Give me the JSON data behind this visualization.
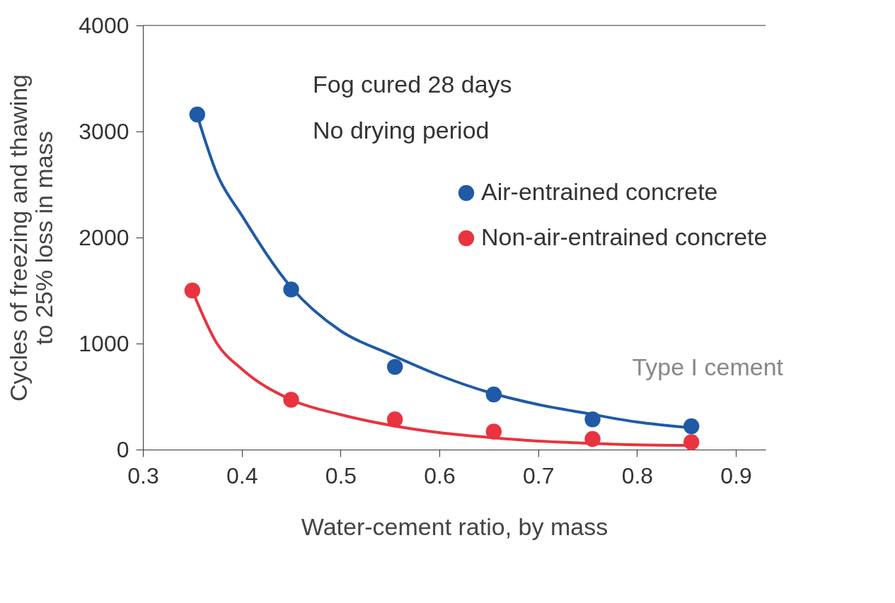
{
  "chart_data": {
    "type": "scatter",
    "xlabel": "Water-cement ratio, by mass",
    "ylabel": "Cycles of freezing and thawing\nto 25% loss in mass",
    "xlim": [
      0.3,
      0.93
    ],
    "xticks": [
      0.3,
      0.4,
      0.5,
      0.6,
      0.7,
      0.8,
      0.9
    ],
    "ylim": [
      0,
      4000
    ],
    "yticks": [
      0,
      1000,
      2000,
      3000,
      4000
    ],
    "grid": false,
    "legend": "top right",
    "marker": "circle",
    "annotations": [
      "Fog cured 28 days",
      "No drying period",
      "Type I cement"
    ],
    "series": [
      {
        "name": "Air-entrained concrete",
        "color": "#1f5aa6",
        "x": [
          0.355,
          0.45,
          0.555,
          0.655,
          0.755,
          0.855
        ],
        "values": [
          3160,
          1510,
          780,
          520,
          285,
          220
        ]
      },
      {
        "name": "Non-air-entrained concrete",
        "color": "#e8343f",
        "x": [
          0.35,
          0.45,
          0.555,
          0.655,
          0.755,
          0.855
        ],
        "values": [
          1500,
          470,
          285,
          170,
          100,
          70
        ]
      },
      {
        "color": "#1f5aa6",
        "type": "line",
        "marker": "none",
        "line_style": "solid",
        "x": [
          0.355,
          0.375,
          0.4,
          0.45,
          0.5,
          0.55,
          0.6,
          0.65,
          0.7,
          0.75,
          0.8,
          0.85
        ],
        "values": [
          3150,
          2600,
          2210,
          1530,
          1120,
          900,
          700,
          540,
          425,
          340,
          260,
          210
        ]
      },
      {
        "color": "#e8343f",
        "type": "line",
        "marker": "none",
        "line_style": "solid",
        "x": [
          0.35,
          0.375,
          0.4,
          0.45,
          0.5,
          0.55,
          0.6,
          0.65,
          0.7,
          0.75,
          0.8,
          0.85
        ],
        "values": [
          1500,
          1000,
          760,
          470,
          330,
          230,
          160,
          115,
          80,
          60,
          45,
          40
        ]
      }
    ]
  }
}
